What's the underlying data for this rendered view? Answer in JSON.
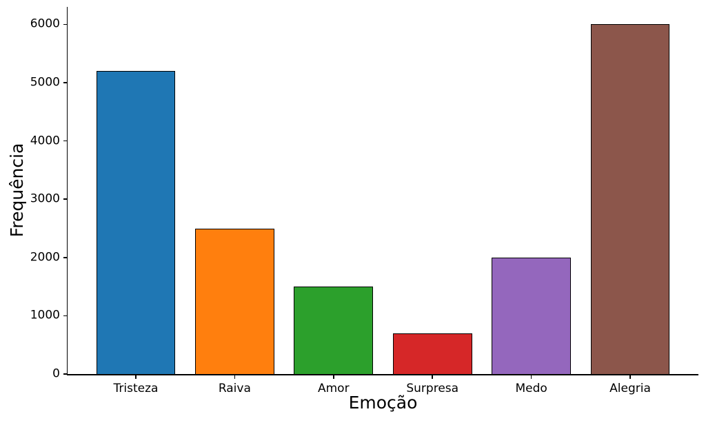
{
  "chart_data": {
    "type": "bar",
    "title": "",
    "xlabel": "Emoção",
    "ylabel": "Frequência",
    "categories": [
      "Tristeza",
      "Raiva",
      "Amor",
      "Surpresa",
      "Medo",
      "Alegria"
    ],
    "values": [
      5200,
      2500,
      1500,
      700,
      2000,
      6000
    ],
    "bar_colors": [
      "#1f77b4",
      "#ff7f0e",
      "#2ca02c",
      "#d62728",
      "#9467bd",
      "#8c564b"
    ],
    "bar_edge_color": "#000000",
    "yticks": [
      0,
      1000,
      2000,
      3000,
      4000,
      5000,
      6000
    ],
    "ylim": [
      0,
      6300
    ],
    "bar_width_fraction": 0.8,
    "x_axis_padding": 0.69,
    "grid": false,
    "legend": "none",
    "background_color": "#ffffff",
    "text_color": "#000000"
  }
}
